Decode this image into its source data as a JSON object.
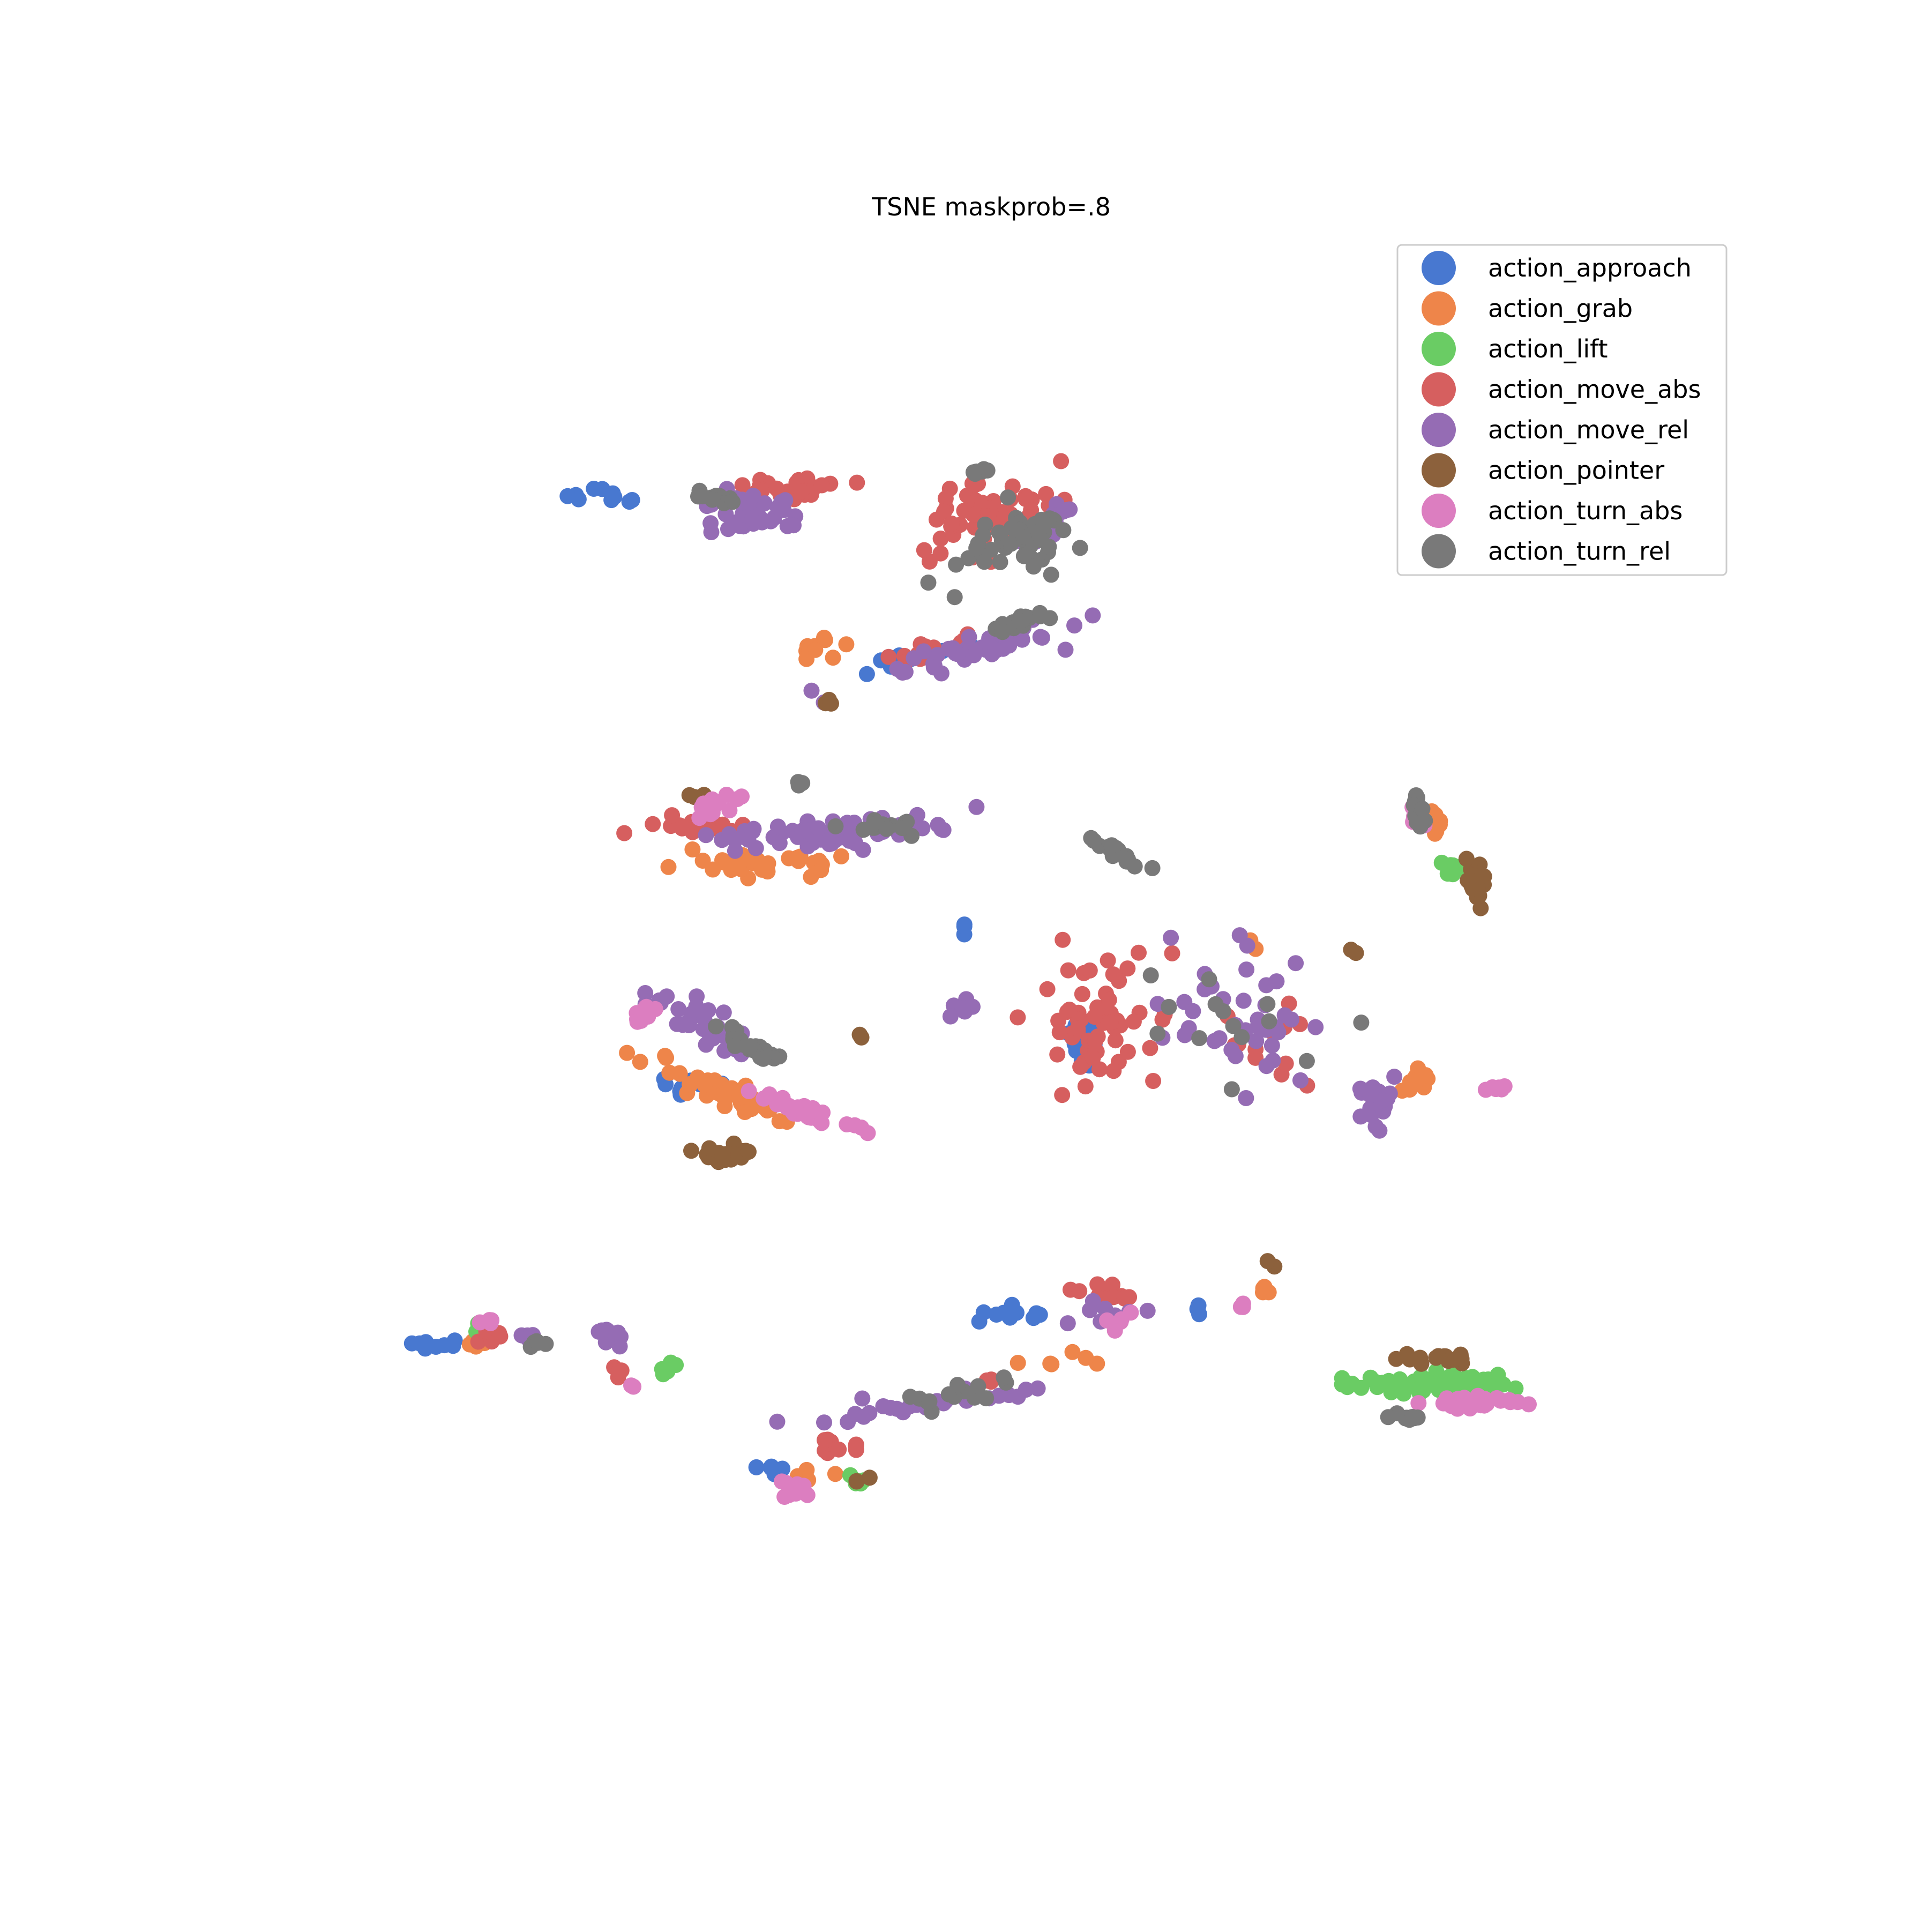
{
  "chart_data": {
    "type": "scatter",
    "title": "TSNE maskprob=.8",
    "xlabel": "",
    "ylabel": "",
    "xlim": [
      0,
      100
    ],
    "ylim": [
      0,
      100
    ],
    "axes_visible": false,
    "grid": false,
    "legend_position": "top-right",
    "series": [
      {
        "name": "action_approach",
        "color": "#4878d0",
        "clusters": [
          {
            "cx": 25.5,
            "cy": 82.2,
            "sx": 1.8,
            "sy": 0.6,
            "n": 10,
            "angle": 0
          },
          {
            "cx": 46.0,
            "cy": 71.0,
            "sx": 3.5,
            "sy": 0.5,
            "n": 18,
            "angle": 12
          },
          {
            "cx": 31.0,
            "cy": 41.5,
            "sx": 2.0,
            "sy": 0.6,
            "n": 8,
            "angle": 0
          },
          {
            "cx": 57.0,
            "cy": 45.0,
            "sx": 1.2,
            "sy": 2.2,
            "n": 16,
            "angle": 0
          },
          {
            "cx": 53.0,
            "cy": 26.0,
            "sx": 3.0,
            "sy": 1.0,
            "n": 10,
            "angle": 0
          },
          {
            "cx": 14.5,
            "cy": 24.0,
            "sx": 1.5,
            "sy": 0.6,
            "n": 8,
            "angle": 0
          },
          {
            "cx": 64.5,
            "cy": 26.5,
            "sx": 0.4,
            "sy": 0.4,
            "n": 4,
            "angle": 0
          },
          {
            "cx": 36.0,
            "cy": 15.5,
            "sx": 1.5,
            "sy": 0.4,
            "n": 5,
            "angle": 0
          },
          {
            "cx": 49.5,
            "cy": 52.5,
            "sx": 0.3,
            "sy": 0.3,
            "n": 3,
            "angle": 0
          }
        ]
      },
      {
        "name": "action_grab",
        "color": "#ee854a",
        "clusters": [
          {
            "cx": 40.0,
            "cy": 71.5,
            "sx": 1.5,
            "sy": 0.8,
            "n": 10,
            "angle": 40
          },
          {
            "cx": 36.0,
            "cy": 57.0,
            "sx": 4.5,
            "sy": 0.8,
            "n": 30,
            "angle": 0
          },
          {
            "cx": 33.0,
            "cy": 41.5,
            "sx": 5.0,
            "sy": 0.8,
            "n": 45,
            "angle": -25
          },
          {
            "cx": 79.0,
            "cy": 42.0,
            "sx": 2.2,
            "sy": 1.0,
            "n": 10,
            "angle": 0
          },
          {
            "cx": 80.0,
            "cy": 59.5,
            "sx": 0.6,
            "sy": 1.5,
            "n": 8,
            "angle": 0
          },
          {
            "cx": 68.0,
            "cy": 51.5,
            "sx": 0.5,
            "sy": 0.5,
            "n": 3,
            "angle": 0
          },
          {
            "cx": 55.0,
            "cy": 22.5,
            "sx": 3.0,
            "sy": 0.6,
            "n": 6,
            "angle": 0
          },
          {
            "cx": 39.0,
            "cy": 15.0,
            "sx": 1.5,
            "sy": 0.5,
            "n": 5,
            "angle": 0
          },
          {
            "cx": 69.0,
            "cy": 27.5,
            "sx": 0.8,
            "sy": 0.5,
            "n": 4,
            "angle": 0
          },
          {
            "cx": 17.0,
            "cy": 24.0,
            "sx": 1.0,
            "sy": 0.6,
            "n": 4,
            "angle": 0
          }
        ]
      },
      {
        "name": "action_lift",
        "color": "#6acc64",
        "clusters": [
          {
            "cx": 80.5,
            "cy": 21.3,
            "sx": 5.0,
            "sy": 0.6,
            "n": 70,
            "angle": 0
          },
          {
            "cx": 81.5,
            "cy": 56.5,
            "sx": 1.2,
            "sy": 1.2,
            "n": 12,
            "angle": -45
          },
          {
            "cx": 42.5,
            "cy": 14.5,
            "sx": 0.6,
            "sy": 0.3,
            "n": 6,
            "angle": 0
          },
          {
            "cx": 30.0,
            "cy": 22.5,
            "sx": 0.8,
            "sy": 0.5,
            "n": 5,
            "angle": 0
          },
          {
            "cx": 17.5,
            "cy": 25.0,
            "sx": 0.8,
            "sy": 0.5,
            "n": 3,
            "angle": 0
          }
        ]
      },
      {
        "name": "action_move_abs",
        "color": "#d65f5f",
        "clusters": [
          {
            "cx": 37.0,
            "cy": 82.8,
            "sx": 3.5,
            "sy": 0.6,
            "n": 25,
            "angle": 0
          },
          {
            "cx": 51.0,
            "cy": 81.0,
            "sx": 4.0,
            "sy": 2.5,
            "n": 55,
            "angle": 20
          },
          {
            "cx": 47.0,
            "cy": 71.5,
            "sx": 3.5,
            "sy": 0.6,
            "n": 16,
            "angle": 12
          },
          {
            "cx": 32.0,
            "cy": 59.5,
            "sx": 3.0,
            "sy": 0.6,
            "n": 18,
            "angle": 0
          },
          {
            "cx": 58.0,
            "cy": 46.5,
            "sx": 4.0,
            "sy": 4.5,
            "n": 60,
            "angle": 0
          },
          {
            "cx": 69.0,
            "cy": 44.5,
            "sx": 2.5,
            "sy": 3.0,
            "n": 12,
            "angle": 0
          },
          {
            "cx": 58.5,
            "cy": 27.5,
            "sx": 1.5,
            "sy": 0.8,
            "n": 12,
            "angle": 0
          },
          {
            "cx": 41.0,
            "cy": 17.0,
            "sx": 1.5,
            "sy": 0.6,
            "n": 10,
            "angle": 0
          },
          {
            "cx": 18.0,
            "cy": 24.5,
            "sx": 0.8,
            "sy": 0.5,
            "n": 5,
            "angle": 0
          },
          {
            "cx": 26.5,
            "cy": 22.0,
            "sx": 0.5,
            "sy": 0.4,
            "n": 4,
            "angle": 0
          },
          {
            "cx": 51.0,
            "cy": 21.5,
            "sx": 0.3,
            "sy": 0.3,
            "n": 3,
            "angle": 0
          }
        ]
      },
      {
        "name": "action_move_rel",
        "color": "#956cb4",
        "clusters": [
          {
            "cx": 35.5,
            "cy": 81.0,
            "sx": 2.5,
            "sy": 1.2,
            "n": 40,
            "angle": 0
          },
          {
            "cx": 55.0,
            "cy": 80.5,
            "sx": 2.5,
            "sy": 1.0,
            "n": 18,
            "angle": 20
          },
          {
            "cx": 50.0,
            "cy": 71.5,
            "sx": 6.0,
            "sy": 0.8,
            "n": 45,
            "angle": 15
          },
          {
            "cx": 40.0,
            "cy": 59.0,
            "sx": 7.0,
            "sy": 0.8,
            "n": 70,
            "angle": 5
          },
          {
            "cx": 32.0,
            "cy": 46.0,
            "sx": 3.5,
            "sy": 1.0,
            "n": 35,
            "angle": -30
          },
          {
            "cx": 76.5,
            "cy": 40.5,
            "sx": 1.0,
            "sy": 1.5,
            "n": 30,
            "angle": 0
          },
          {
            "cx": 68.0,
            "cy": 46.0,
            "sx": 4.5,
            "sy": 4.5,
            "n": 40,
            "angle": 0
          },
          {
            "cx": 26.0,
            "cy": 24.5,
            "sx": 0.8,
            "sy": 0.6,
            "n": 20,
            "angle": 0
          },
          {
            "cx": 47.0,
            "cy": 20.0,
            "sx": 7.0,
            "sy": 0.6,
            "n": 30,
            "angle": 10
          },
          {
            "cx": 58.5,
            "cy": 26.0,
            "sx": 3.0,
            "sy": 0.8,
            "n": 8,
            "angle": 0
          },
          {
            "cx": 20.5,
            "cy": 24.5,
            "sx": 0.6,
            "sy": 0.4,
            "n": 4,
            "angle": 0
          },
          {
            "cx": 49.0,
            "cy": 47.0,
            "sx": 1.0,
            "sy": 1.0,
            "n": 6,
            "angle": 0
          }
        ]
      },
      {
        "name": "action_pointer",
        "color": "#8c613c",
        "clusters": [
          {
            "cx": 83.0,
            "cy": 55.5,
            "sx": 0.7,
            "sy": 1.3,
            "n": 30,
            "angle": 0
          },
          {
            "cx": 33.5,
            "cy": 37.0,
            "sx": 1.8,
            "sy": 0.5,
            "n": 25,
            "angle": 0
          },
          {
            "cx": 80.0,
            "cy": 23.0,
            "sx": 2.2,
            "sy": 0.3,
            "n": 15,
            "angle": 0
          },
          {
            "cx": 40.0,
            "cy": 68.0,
            "sx": 0.5,
            "sy": 0.3,
            "n": 4,
            "angle": 0
          },
          {
            "cx": 31.5,
            "cy": 61.5,
            "sx": 0.8,
            "sy": 0.3,
            "n": 3,
            "angle": 0
          },
          {
            "cx": 42.5,
            "cy": 45.0,
            "sx": 0.3,
            "sy": 0.3,
            "n": 2,
            "angle": 0
          },
          {
            "cx": 42.5,
            "cy": 14.5,
            "sx": 0.4,
            "sy": 0.3,
            "n": 3,
            "angle": 0
          },
          {
            "cx": 75.0,
            "cy": 51.0,
            "sx": 0.4,
            "sy": 0.3,
            "n": 2,
            "angle": 0
          },
          {
            "cx": 69.5,
            "cy": 29.5,
            "sx": 0.3,
            "sy": 0.3,
            "n": 2,
            "angle": 0
          }
        ]
      },
      {
        "name": "action_turn_abs",
        "color": "#dc7ec0",
        "clusters": [
          {
            "cx": 33.0,
            "cy": 61.0,
            "sx": 1.8,
            "sy": 0.6,
            "n": 15,
            "angle": 20
          },
          {
            "cx": 28.0,
            "cy": 46.5,
            "sx": 0.8,
            "sy": 0.8,
            "n": 12,
            "angle": 0
          },
          {
            "cx": 38.5,
            "cy": 40.0,
            "sx": 3.5,
            "sy": 0.6,
            "n": 30,
            "angle": -20
          },
          {
            "cx": 79.0,
            "cy": 60.0,
            "sx": 0.5,
            "sy": 1.2,
            "n": 10,
            "angle": 0
          },
          {
            "cx": 82.5,
            "cy": 20.0,
            "sx": 2.5,
            "sy": 0.4,
            "n": 40,
            "angle": 0
          },
          {
            "cx": 84.5,
            "cy": 41.5,
            "sx": 0.6,
            "sy": 0.3,
            "n": 6,
            "angle": 0
          },
          {
            "cx": 38.0,
            "cy": 14.0,
            "sx": 1.2,
            "sy": 0.6,
            "n": 15,
            "angle": 0
          },
          {
            "cx": 18.0,
            "cy": 25.5,
            "sx": 0.5,
            "sy": 0.4,
            "n": 4,
            "angle": 0
          },
          {
            "cx": 59.5,
            "cy": 25.5,
            "sx": 1.5,
            "sy": 1.0,
            "n": 6,
            "angle": 0
          },
          {
            "cx": 67.5,
            "cy": 26.5,
            "sx": 0.4,
            "sy": 0.3,
            "n": 3,
            "angle": 0
          },
          {
            "cx": 27.5,
            "cy": 21.0,
            "sx": 0.3,
            "sy": 0.3,
            "n": 2,
            "angle": 0
          }
        ]
      },
      {
        "name": "action_turn_rel",
        "color": "#797979",
        "clusters": [
          {
            "cx": 33.0,
            "cy": 82.0,
            "sx": 1.2,
            "sy": 0.5,
            "n": 12,
            "angle": 0
          },
          {
            "cx": 53.0,
            "cy": 79.0,
            "sx": 3.5,
            "sy": 2.0,
            "n": 50,
            "angle": 15
          },
          {
            "cx": 53.0,
            "cy": 73.5,
            "sx": 2.0,
            "sy": 0.6,
            "n": 14,
            "angle": 20
          },
          {
            "cx": 44.0,
            "cy": 59.5,
            "sx": 3.5,
            "sy": 0.6,
            "n": 16,
            "angle": 0
          },
          {
            "cx": 59.0,
            "cy": 58.0,
            "sx": 2.0,
            "sy": 0.5,
            "n": 18,
            "angle": -35
          },
          {
            "cx": 35.5,
            "cy": 44.5,
            "sx": 2.5,
            "sy": 0.5,
            "n": 22,
            "angle": -35
          },
          {
            "cx": 79.0,
            "cy": 60.5,
            "sx": 0.5,
            "sy": 1.5,
            "n": 14,
            "angle": 0
          },
          {
            "cx": 48.5,
            "cy": 20.5,
            "sx": 5.0,
            "sy": 0.8,
            "n": 14,
            "angle": 10
          },
          {
            "cx": 78.0,
            "cy": 19.0,
            "sx": 1.5,
            "sy": 0.4,
            "n": 8,
            "angle": 0
          },
          {
            "cx": 21.0,
            "cy": 24.0,
            "sx": 0.6,
            "sy": 0.3,
            "n": 5,
            "angle": 0
          },
          {
            "cx": 66.0,
            "cy": 46.0,
            "sx": 4.5,
            "sy": 4.5,
            "n": 14,
            "angle": 0
          },
          {
            "cx": 50.5,
            "cy": 83.8,
            "sx": 0.8,
            "sy": 0.3,
            "n": 6,
            "angle": 0
          },
          {
            "cx": 38.5,
            "cy": 62.5,
            "sx": 0.4,
            "sy": 0.3,
            "n": 3,
            "angle": 0
          }
        ]
      }
    ]
  }
}
